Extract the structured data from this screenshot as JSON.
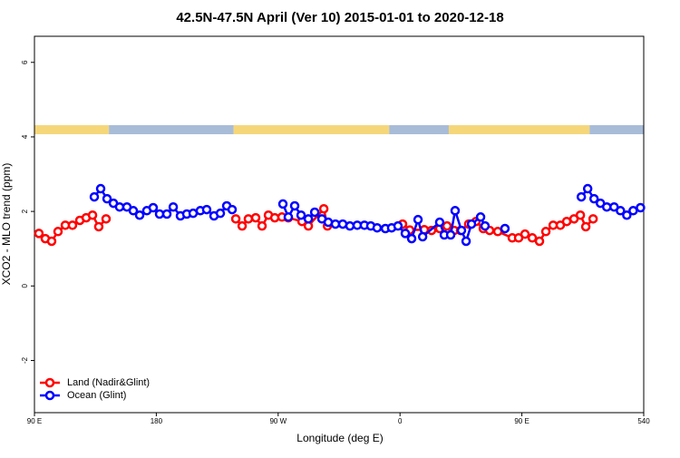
{
  "chart_data": {
    "type": "line",
    "title": "42.5N-47.5N April (Ver 10)   2015-01-01 to 2020-12-18",
    "xlabel": "Longitude (deg E)",
    "ylabel": "XCO2 - MLO trend (ppm)",
    "xlim": [
      90,
      540
    ],
    "ylim": [
      -3.4,
      6.7
    ],
    "xticks": [
      {
        "value": 90,
        "label": "90 E"
      },
      180,
      {
        "value": 270,
        "label": "90 W"
      },
      {
        "value": 360,
        "label": "0"
      },
      {
        "value": 450,
        "label": "90 E"
      },
      540
    ],
    "yticks": [
      -2,
      0,
      2,
      4,
      6
    ],
    "legend": "bottom-left",
    "surface_strip": [
      {
        "x0": 90,
        "x1": 145,
        "color": "#f5d77a"
      },
      {
        "x0": 145,
        "x1": 237,
        "color": "#a8bcd8"
      },
      {
        "x0": 237,
        "x1": 352,
        "color": "#f5d77a"
      },
      {
        "x0": 352,
        "x1": 396,
        "color": "#a8bcd8"
      },
      {
        "x0": 396,
        "x1": 500,
        "color": "#f5d77a"
      },
      {
        "x0": 500,
        "x1": 540,
        "color": "#a8bcd8"
      }
    ],
    "series": [
      {
        "name": "Land (Nadir&Glint)",
        "color": "#ff0000",
        "x": [
          93.3,
          98.0,
          102.7,
          107.4,
          112.8,
          118.1,
          123.5,
          128.2,
          132.9,
          137.5,
          142.9,
          null,
          238.7,
          243.4,
          248.0,
          253.4,
          258.1,
          262.8,
          267.5,
          272.8,
          277.5,
          287.6,
          292.3,
          303.7,
          306.4,
          null,
          361.9,
          367.2,
          377.9,
          383.3,
          389.3,
          394.7,
          400.0,
          404.7,
          410.7,
          416.1,
          421.5,
          426.2,
          432.2,
          442.9,
          447.6,
          452.3,
          457.7,
          463.0,
          467.7,
          473.1,
          478.4,
          483.1,
          488.5,
          493.2,
          497.2,
          502.6
        ],
        "values": [
          1.41,
          1.27,
          1.2,
          1.46,
          1.63,
          1.63,
          1.76,
          1.83,
          1.9,
          1.59,
          1.8,
          null,
          1.8,
          1.61,
          1.8,
          1.83,
          1.61,
          1.9,
          1.83,
          1.85,
          1.83,
          1.73,
          1.61,
          2.07,
          1.61,
          null,
          1.66,
          1.5,
          1.51,
          1.49,
          1.54,
          1.61,
          1.49,
          1.49,
          1.66,
          1.73,
          1.54,
          1.49,
          1.46,
          1.29,
          1.29,
          1.39,
          1.29,
          1.2,
          1.46,
          1.63,
          1.63,
          1.73,
          1.8,
          1.9,
          1.59,
          1.8
        ]
      },
      {
        "name": "Ocean (Glint)",
        "color": "#0000ff",
        "x": [
          134.2,
          138.9,
          143.6,
          148.3,
          152.9,
          158.3,
          163.0,
          167.7,
          173.0,
          177.7,
          182.4,
          187.8,
          192.5,
          197.8,
          202.5,
          207.2,
          212.5,
          217.2,
          222.6,
          227.3,
          232.0,
          236.0,
          null,
          273.5,
          277.5,
          282.2,
          286.9,
          292.3,
          297.0,
          302.3,
          307.0,
          312.3,
          317.7,
          323.0,
          328.4,
          333.7,
          338.4,
          343.1,
          349.2,
          353.8,
          358.5,
          363.9,
          368.6,
          373.3,
          376.7,
          389.3,
          392.7,
          397.4,
          400.7,
          405.4,
          408.8,
          412.8,
          419.5,
          422.8,
          null,
          437.5,
          null,
          493.9,
          498.6,
          503.3,
          508.0,
          512.7,
          518.1,
          522.8,
          527.5,
          532.2,
          537.6
        ],
        "values": [
          2.39,
          2.61,
          2.34,
          2.22,
          2.12,
          2.12,
          2.02,
          1.9,
          2.02,
          2.1,
          1.93,
          1.93,
          2.12,
          1.88,
          1.93,
          1.95,
          2.02,
          2.05,
          1.88,
          1.95,
          2.15,
          2.05,
          null,
          2.2,
          1.85,
          2.15,
          1.9,
          1.8,
          1.98,
          1.8,
          1.71,
          1.66,
          1.66,
          1.61,
          1.63,
          1.63,
          1.61,
          1.56,
          1.54,
          1.56,
          1.61,
          1.41,
          1.27,
          1.78,
          1.32,
          1.71,
          1.37,
          1.37,
          2.02,
          1.49,
          1.2,
          1.66,
          1.85,
          1.61,
          null,
          1.54,
          null,
          2.39,
          2.61,
          2.34,
          2.22,
          2.12,
          2.12,
          2.02,
          1.9,
          2.02,
          2.1
        ]
      }
    ]
  }
}
